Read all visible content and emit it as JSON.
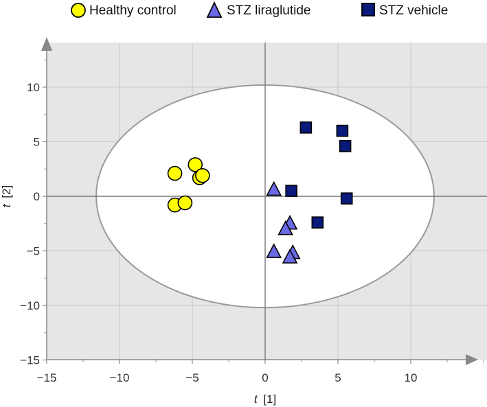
{
  "chart_data": {
    "type": "scatter",
    "xlabel_var": "t",
    "xlabel_sub": "[1]",
    "ylabel_var": "t",
    "ylabel_sub": "[2]",
    "xlim": [
      -15,
      15
    ],
    "ylim": [
      -15,
      14
    ],
    "xticks": [
      -15,
      -10,
      -5,
      0,
      5,
      10
    ],
    "yticks": [
      -15,
      -10,
      -5,
      0,
      5,
      10
    ],
    "grid": true,
    "legend_position": "top",
    "ellipse": {
      "cx": 0,
      "cy": 0,
      "rx": 11.6,
      "ry": 10.2
    },
    "series": [
      {
        "name": "Healthy control",
        "marker": "circle",
        "color": "#ffff00",
        "points": [
          [
            -6.2,
            2.1
          ],
          [
            -4.8,
            2.9
          ],
          [
            -4.5,
            1.7
          ],
          [
            -4.3,
            1.9
          ],
          [
            -6.2,
            -0.8
          ],
          [
            -5.5,
            -0.6
          ]
        ]
      },
      {
        "name": "STZ liraglutide",
        "marker": "triangle",
        "color": "#6a6ae6",
        "points": [
          [
            0.6,
            0.6
          ],
          [
            1.7,
            -2.5
          ],
          [
            1.4,
            -3.0
          ],
          [
            0.6,
            -5.1
          ],
          [
            1.9,
            -5.2
          ],
          [
            1.7,
            -5.6
          ]
        ]
      },
      {
        "name": "STZ vehicle",
        "marker": "square",
        "color": "#0a1a7a",
        "points": [
          [
            2.8,
            6.3
          ],
          [
            5.3,
            6.0
          ],
          [
            5.5,
            4.6
          ],
          [
            1.8,
            0.5
          ],
          [
            5.6,
            -0.2
          ],
          [
            3.6,
            -2.4
          ]
        ]
      }
    ]
  }
}
